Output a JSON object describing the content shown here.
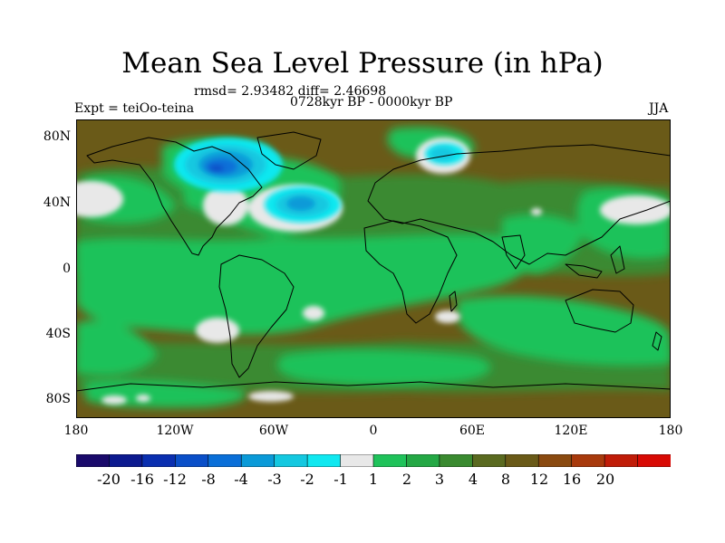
{
  "title": "Mean Sea Level Pressure (in hPa)",
  "stats": "rmsd= 2.93482 diff= 2.46698",
  "experiment": "Expt = teiOo-teina",
  "period": "0728kyr BP - 0000kyr BP",
  "season": "JJA",
  "y_axis": [
    "80N",
    "40N",
    "0",
    "40S",
    "80S"
  ],
  "x_axis": [
    "180",
    "120W",
    "60W",
    "0",
    "60E",
    "120E",
    "180"
  ],
  "colorbar": {
    "colors": [
      "#1a0a6b",
      "#0d1a8f",
      "#0a2fb0",
      "#0a4fc8",
      "#0a6fd8",
      "#0a9ad8",
      "#14c8e0",
      "#10e8f0",
      "#e8e8e8",
      "#1fc25a",
      "#24a845",
      "#3a8a30",
      "#5a6a20",
      "#6a5a18",
      "#8a4a10",
      "#a83a0c",
      "#c01c08",
      "#d80a04"
    ],
    "labels": [
      "-20",
      "-16",
      "-12",
      "-8",
      "-4",
      "-3",
      "-2",
      "-1",
      "1",
      "2",
      "3",
      "4",
      "8",
      "12",
      "16",
      "20"
    ]
  }
}
